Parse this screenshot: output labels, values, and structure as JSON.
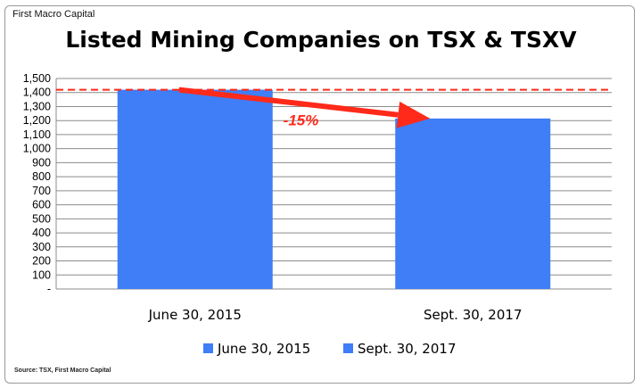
{
  "brand": "First Macro Capital",
  "source": "Source: TSX, First Macro Capital",
  "chart_data": {
    "type": "bar",
    "title": "Listed Mining Companies on TSX & TSXV",
    "categories": [
      "June 30, 2015",
      "Sept. 30, 2017"
    ],
    "values": [
      1420,
      1215
    ],
    "ylim": [
      0,
      1500
    ],
    "yticks": [
      0,
      100,
      200,
      300,
      400,
      500,
      600,
      700,
      800,
      900,
      1000,
      1100,
      1200,
      1300,
      1400,
      1500
    ],
    "ytick_labels": [
      "-",
      "100",
      "200",
      "300",
      "400",
      "500",
      "600",
      "700",
      "800",
      "900",
      "1,000",
      "1,100",
      "1,200",
      "1,300",
      "1,400",
      "1,500"
    ],
    "grid": true,
    "bar_color": "#3f7ef6",
    "legend": {
      "position": "bottom",
      "entries": [
        "June 30, 2015",
        "Sept. 30, 2017"
      ]
    },
    "reference_line": {
      "value": 1420,
      "style": "dashed",
      "color": "#ff2a1a"
    },
    "annotation": {
      "text": "-15%",
      "color": "#ff2a1a",
      "from_category": 0,
      "to_category": 1
    }
  }
}
